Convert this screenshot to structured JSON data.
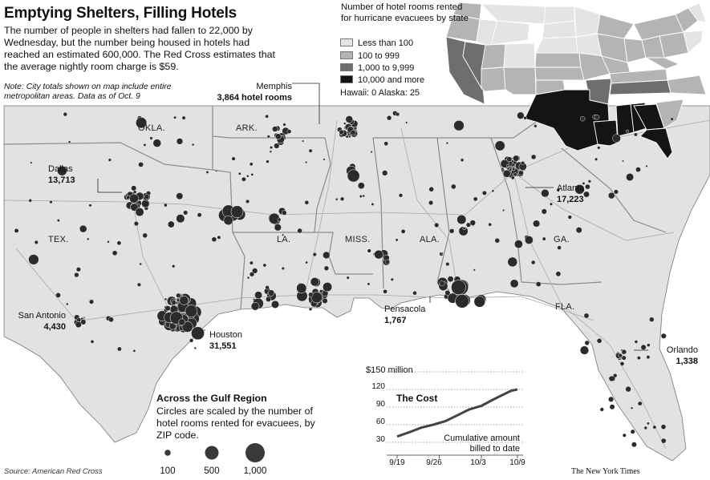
{
  "title": "Emptying Shelters, Filling Hotels",
  "intro": "The number of people in shelters had fallen to 22,000 by Wednesday, but the number being housed in hotels had reached an estimated 600,000. The Red Cross estimates that the average nightly room charge is $59.",
  "note": "Note: City totals shown on map include entire metropolitan areas. Data as of Oct. 9",
  "state_labels": [
    "OKLA.",
    "ARK.",
    "TEX.",
    "LA.",
    "MISS.",
    "ALA.",
    "GA.",
    "FLA."
  ],
  "cities": [
    {
      "name": "Memphis",
      "value": "3,864 hotel rooms"
    },
    {
      "name": "Dallas",
      "value": "13,713"
    },
    {
      "name": "Atlanta",
      "value": "17,223"
    },
    {
      "name": "San Antonio",
      "value": "4,430"
    },
    {
      "name": "Houston",
      "value": "31,551"
    },
    {
      "name": "Pensacola",
      "value": "1,767"
    },
    {
      "name": "Orlando",
      "value": "1,338"
    }
  ],
  "state_legend": {
    "title": "Number of hotel rooms rented for hurricane evacuees by state",
    "classes": [
      {
        "label": "Less than 100",
        "color": "#e4e4e4"
      },
      {
        "label": "100 to 999",
        "color": "#b4b4b4"
      },
      {
        "label": "1,000 to 9,999",
        "color": "#6e6e6e"
      },
      {
        "label": "10,000 and more",
        "color": "#141414"
      }
    ],
    "extra": "Hawaii: 0   Alaska: 25"
  },
  "gulf_legend": {
    "heading": "Across the Gulf Region",
    "description": "Circles are scaled by the number of hotel rooms rented for evacuees, by ZIP code.",
    "sizes": [
      "100",
      "500",
      "1,000"
    ]
  },
  "chart_data": {
    "type": "line",
    "title": "The Cost",
    "top_tick_label": "$150 million",
    "note": "Cumulative amount billed to date",
    "y_ticks": [
      "120",
      "90",
      "60",
      "30"
    ],
    "x_ticks": [
      "9/19",
      "9/26",
      "10/3",
      "10/9"
    ],
    "ylim": [
      30,
      150
    ],
    "series": [
      {
        "x": [
          "9/19",
          "9/21",
          "9/23",
          "9/25",
          "9/27",
          "9/29",
          "10/1",
          "10/3",
          "10/5",
          "10/7",
          "10/8",
          "10/9"
        ],
        "values": [
          40,
          47,
          55,
          60,
          66,
          76,
          86,
          92,
          103,
          113,
          118,
          120
        ]
      }
    ]
  },
  "source": "Source: American Red Cross",
  "credit": "The New York Times"
}
